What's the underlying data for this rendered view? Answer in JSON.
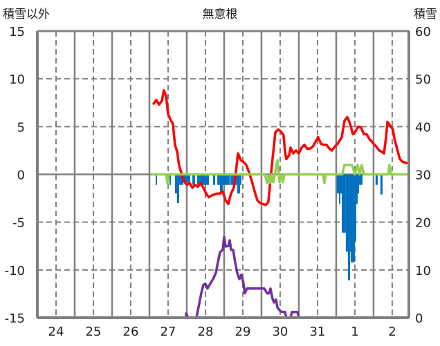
{
  "chart_data": {
    "type": "line",
    "title": "無意根",
    "ylabel_left": "積雪以外",
    "ylabel_right": "積雪",
    "x_unit": "hours since day 24 00:00",
    "xlim": [
      0,
      238.7
    ],
    "ylim_left": [
      -15,
      15
    ],
    "ylim_right": [
      0,
      60
    ],
    "yticks_left": [
      "15",
      "10",
      "5",
      "0",
      "-5",
      "-10",
      "-15"
    ],
    "yticks_left_values": [
      15,
      10,
      5,
      0,
      -5,
      -10,
      -15
    ],
    "yticks_right": [
      "60",
      "50",
      "40",
      "30",
      "20",
      "10",
      "0"
    ],
    "yticks_right_values": [
      60,
      50,
      40,
      30,
      20,
      10,
      0
    ],
    "xtick_labels": [
      "24",
      "25",
      "26",
      "27",
      "28",
      "29",
      "30",
      "31",
      "1",
      "2"
    ],
    "grid": true,
    "series": [
      {
        "name": "temperature",
        "axis": "left",
        "color": "#ff0000",
        "kind": "line",
        "points": [
          [
            74.7,
            7.4
          ],
          [
            76.4,
            7.8
          ],
          [
            78.2,
            7.3
          ],
          [
            80,
            7.7
          ],
          [
            81.3,
            8.8
          ],
          [
            82.7,
            8.2
          ],
          [
            84,
            6.3
          ],
          [
            85.3,
            5.8
          ],
          [
            87.1,
            5.3
          ],
          [
            88.4,
            3.1
          ],
          [
            89.8,
            2.4
          ],
          [
            91.1,
            0.9
          ],
          [
            92.4,
            0.2
          ],
          [
            94.2,
            -0.7
          ],
          [
            96,
            -1.1
          ],
          [
            97.8,
            -0.9
          ],
          [
            99.6,
            -1.4
          ],
          [
            101.3,
            -1.1
          ],
          [
            103.1,
            -1.3
          ],
          [
            104.9,
            -0.9
          ],
          [
            106.7,
            -1.4
          ],
          [
            108.4,
            -2.0
          ],
          [
            110.2,
            -2.4
          ],
          [
            112,
            -2.2
          ],
          [
            113.8,
            -2.1
          ],
          [
            115.6,
            -2.0
          ],
          [
            117.3,
            -2.0
          ],
          [
            119.1,
            -1.8
          ],
          [
            120.9,
            -2.7
          ],
          [
            122.7,
            -3.1
          ],
          [
            124.4,
            -2.0
          ],
          [
            126.2,
            -1.4
          ],
          [
            128,
            0.9
          ],
          [
            128.9,
            2.2
          ],
          [
            130.7,
            1.5
          ],
          [
            132.4,
            1.3
          ],
          [
            134.2,
            1.0
          ],
          [
            136,
            0.2
          ],
          [
            137.8,
            -0.7
          ],
          [
            139.6,
            -1.8
          ],
          [
            141.3,
            -2.7
          ],
          [
            143.1,
            -3.0
          ],
          [
            144.9,
            -3.1
          ],
          [
            146.7,
            -3.2
          ],
          [
            148.4,
            -2.9
          ],
          [
            149.3,
            -1.3
          ],
          [
            151.1,
            1.6
          ],
          [
            152.9,
            4.4
          ],
          [
            154.7,
            4.7
          ],
          [
            156.4,
            4.5
          ],
          [
            158.2,
            4.1
          ],
          [
            159.1,
            2.4
          ],
          [
            160,
            1.6
          ],
          [
            161.8,
            2.0
          ],
          [
            162.7,
            2.8
          ],
          [
            164.4,
            2.2
          ],
          [
            166.2,
            2.5
          ],
          [
            168,
            2.2
          ],
          [
            169.8,
            2.8
          ],
          [
            171.6,
            3.1
          ],
          [
            173.3,
            2.7
          ],
          [
            175.1,
            2.7
          ],
          [
            176.9,
            2.9
          ],
          [
            178.7,
            3.4
          ],
          [
            180.4,
            3.9
          ],
          [
            182.2,
            3.2
          ],
          [
            184,
            3.1
          ],
          [
            185.8,
            3.1
          ],
          [
            187.6,
            2.7
          ],
          [
            189.3,
            2.5
          ],
          [
            191.1,
            2.9
          ],
          [
            192.9,
            3.2
          ],
          [
            195.6,
            3.9
          ],
          [
            197.3,
            5.6
          ],
          [
            199.1,
            6.0
          ],
          [
            200.9,
            5.3
          ],
          [
            202.7,
            4.2
          ],
          [
            204.4,
            4.5
          ],
          [
            206.2,
            5.0
          ],
          [
            208,
            4.9
          ],
          [
            209.8,
            4.2
          ],
          [
            211.6,
            4.2
          ],
          [
            213.3,
            3.7
          ],
          [
            215.1,
            3.4
          ],
          [
            216,
            3.2
          ],
          [
            217.8,
            2.9
          ],
          [
            219.6,
            2.5
          ],
          [
            220.9,
            2.4
          ],
          [
            222.7,
            2.2
          ],
          [
            224,
            3.8
          ],
          [
            224.9,
            5.5
          ],
          [
            226.7,
            5.1
          ],
          [
            228.4,
            4.7
          ],
          [
            229.3,
            3.8
          ],
          [
            231.1,
            2.7
          ],
          [
            232.9,
            1.6
          ],
          [
            234.7,
            1.3
          ],
          [
            237.3,
            1.2
          ]
        ]
      },
      {
        "name": "other",
        "axis": "left",
        "color": "#92d050",
        "kind": "line",
        "points": [
          [
            73.8,
            0
          ],
          [
            82.7,
            0
          ],
          [
            83.6,
            -0.9
          ],
          [
            84.4,
            0
          ],
          [
            146.2,
            0
          ],
          [
            147.6,
            -0.9
          ],
          [
            148.4,
            -0.2
          ],
          [
            149.3,
            -0.9
          ],
          [
            150.2,
            0
          ],
          [
            151.6,
            -0.8
          ],
          [
            152.9,
            0.3
          ],
          [
            154.2,
            1.5
          ],
          [
            155.6,
            -0.8
          ],
          [
            156.4,
            0
          ],
          [
            157.8,
            -0.8
          ],
          [
            158.7,
            0
          ],
          [
            183.6,
            0
          ],
          [
            184.4,
            -0.9
          ],
          [
            185.3,
            0
          ],
          [
            196,
            0
          ],
          [
            197.3,
            1.0
          ],
          [
            202.2,
            1.0
          ],
          [
            204,
            0
          ],
          [
            205.8,
            1.0
          ],
          [
            207.1,
            0
          ],
          [
            208.4,
            1.0
          ],
          [
            209.8,
            0
          ],
          [
            225.3,
            0
          ],
          [
            226.2,
            1.0
          ],
          [
            227.1,
            0
          ],
          [
            238.2,
            0
          ]
        ]
      },
      {
        "name": "snow depth",
        "axis": "right",
        "color": "#7030a0",
        "kind": "line",
        "points": [
          [
            72.9,
            0
          ],
          [
            95.6,
            0
          ],
          [
            95.6,
            0.9
          ],
          [
            96.9,
            0
          ],
          [
            102.2,
            0
          ],
          [
            104,
            2.9
          ],
          [
            105.3,
            5.1
          ],
          [
            106.7,
            6.9
          ],
          [
            108,
            7.1
          ],
          [
            109.3,
            6.1
          ],
          [
            110.7,
            6.9
          ],
          [
            112.9,
            8.1
          ],
          [
            114.7,
            9.4
          ],
          [
            116,
            11.6
          ],
          [
            117.3,
            13.7
          ],
          [
            119.1,
            14.2
          ],
          [
            120,
            16.9
          ],
          [
            120.9,
            14.9
          ],
          [
            122.7,
            15
          ],
          [
            123.6,
            16.2
          ],
          [
            124.4,
            14.2
          ],
          [
            125.8,
            14.2
          ],
          [
            127.1,
            11.6
          ],
          [
            128.4,
            9.4
          ],
          [
            129.8,
            8.1
          ],
          [
            131.1,
            9
          ],
          [
            132.4,
            7.2
          ],
          [
            133.3,
            5.1
          ],
          [
            134.7,
            6.1
          ],
          [
            145.8,
            6.1
          ],
          [
            147.6,
            5.1
          ],
          [
            148.9,
            5.1
          ],
          [
            149.8,
            6.1
          ],
          [
            151.1,
            4
          ],
          [
            152,
            3.2
          ],
          [
            153.3,
            3.8
          ],
          [
            154.2,
            2.2
          ],
          [
            156,
            1.4
          ],
          [
            157.3,
            1.2
          ],
          [
            159.1,
            1.2
          ],
          [
            160,
            0
          ],
          [
            162.7,
            0
          ],
          [
            163.6,
            1.2
          ],
          [
            167.1,
            1.2
          ],
          [
            168,
            0
          ],
          [
            238.2,
            0
          ]
        ]
      },
      {
        "name": "precipitation",
        "axis": "left",
        "color": "#0070c0",
        "kind": "bar",
        "bars": [
          [
            76,
            76.9,
            -1.1
          ],
          [
            84.9,
            85.8,
            -1.1
          ],
          [
            88.4,
            89.8,
            -2.0
          ],
          [
            89.8,
            91.1,
            -3.0
          ],
          [
            91.1,
            93.8,
            -1.1
          ],
          [
            93.8,
            98.2,
            -0.8
          ],
          [
            99.6,
            101.3,
            -1.1
          ],
          [
            102.7,
            110.2,
            -1.1
          ],
          [
            112.9,
            114.2,
            -1.1
          ],
          [
            115.6,
            117.3,
            -1.1
          ],
          [
            117.3,
            119.1,
            -1.9
          ],
          [
            119.1,
            123.6,
            -1.1
          ],
          [
            124,
            126.2,
            -1.1
          ],
          [
            126.2,
            128.4,
            -1.1
          ],
          [
            128.4,
            130.2,
            -2.0
          ],
          [
            130.2,
            131.1,
            -1.1
          ],
          [
            192.4,
            193.8,
            -2.0
          ],
          [
            193.8,
            194.7,
            -3.1
          ],
          [
            194.7,
            195.6,
            -2.0
          ],
          [
            195.6,
            198.2,
            -6.1
          ],
          [
            198.2,
            199.6,
            -8.1
          ],
          [
            199.6,
            200.9,
            -11.1
          ],
          [
            200.9,
            201.3,
            -8.1
          ],
          [
            201.3,
            204,
            -9.2
          ],
          [
            204,
            204.9,
            -7.0
          ],
          [
            204.9,
            205.8,
            -3.1
          ],
          [
            205.8,
            206.7,
            -2.0
          ],
          [
            206.7,
            208.9,
            -1.1
          ],
          [
            217.3,
            218.7,
            -1.1
          ],
          [
            220.4,
            221.8,
            -2.1
          ]
        ]
      }
    ]
  }
}
